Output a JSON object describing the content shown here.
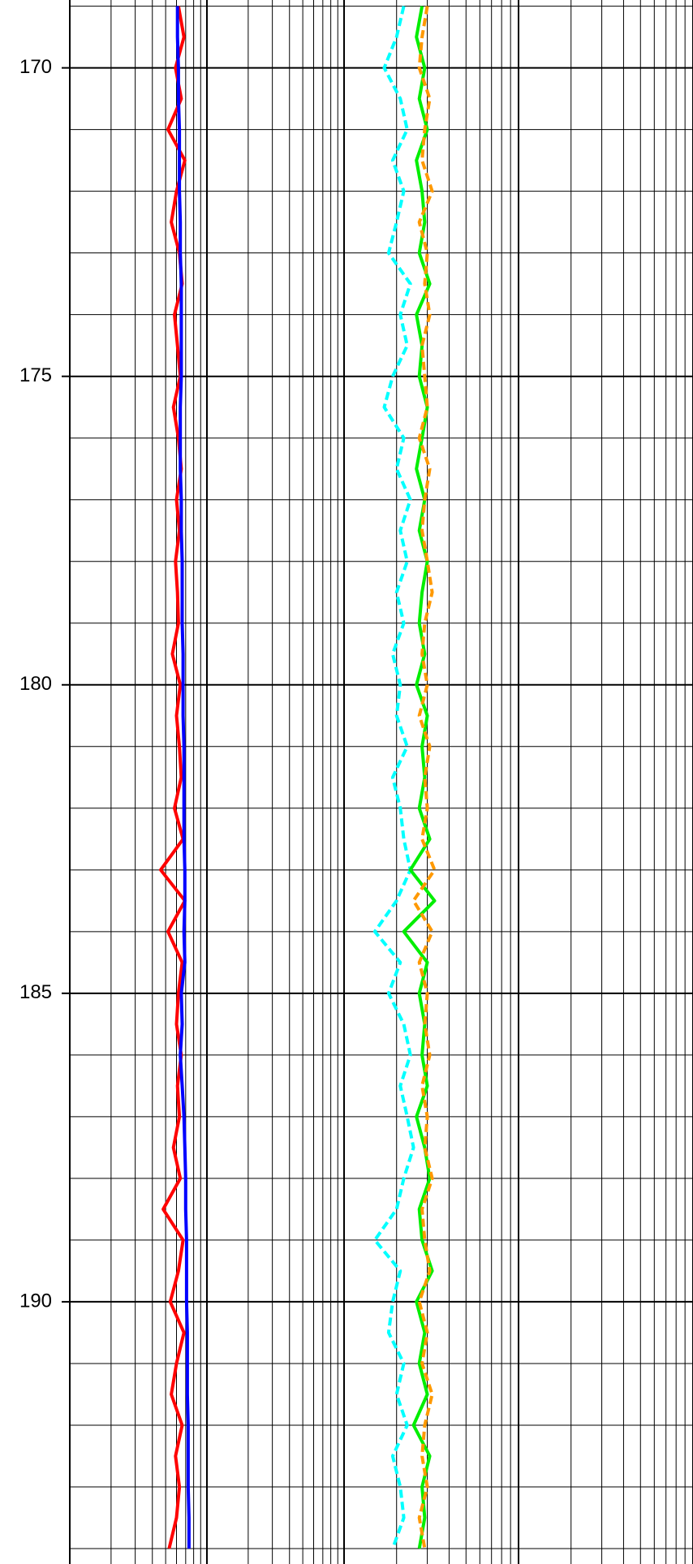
{
  "chart_data": {
    "type": "well-log",
    "ylim": [
      168.9,
      194.25
    ],
    "yticks": [
      170,
      175,
      180,
      185,
      190
    ],
    "yminor": [
      169,
      171,
      172,
      173,
      174,
      176,
      177,
      178,
      179,
      181,
      182,
      183,
      184,
      186,
      187,
      188,
      189,
      191,
      192,
      193,
      194
    ],
    "depth": [
      169,
      169.5,
      170,
      170.5,
      171,
      171.5,
      172,
      172.5,
      173,
      173.5,
      174,
      174.5,
      175,
      175.5,
      176,
      176.5,
      177,
      177.5,
      178,
      178.5,
      179,
      179.5,
      180,
      180.5,
      181,
      181.5,
      182,
      182.5,
      183,
      183.5,
      184,
      184.5,
      185,
      185.5,
      186,
      186.5,
      187,
      187.5,
      188,
      188.5,
      189,
      189.5,
      190,
      190.5,
      191,
      191.5,
      192,
      192.5,
      193,
      193.5,
      194
    ],
    "tracks": [
      {
        "xlim": [
          1,
          100
        ],
        "log": true,
        "xticks": [
          1,
          2,
          3,
          4,
          5,
          6,
          7,
          8,
          9,
          10,
          20,
          30,
          40,
          50,
          60,
          70,
          80,
          90,
          100
        ],
        "series": [
          {
            "color": "#ff0000",
            "dash": false,
            "values": [
              6.2,
              6.8,
              5.9,
              6.5,
              5.2,
              6.9,
              6.0,
              5.5,
              6.3,
              6.6,
              5.8,
              6.1,
              6.4,
              5.7,
              6.2,
              6.5,
              6.0,
              6.3,
              5.9,
              6.1,
              6.2,
              5.6,
              6.4,
              6.0,
              6.3,
              6.5,
              5.8,
              6.7,
              4.6,
              6.9,
              5.2,
              6.6,
              6.2,
              6.0,
              6.5,
              6.1,
              6.3,
              5.7,
              6.4,
              4.8,
              6.7,
              6.2,
              5.4,
              6.8,
              6.0,
              5.5,
              6.6,
              5.9,
              6.3,
              6.0,
              5.3
            ]
          },
          {
            "color": "#0000ff",
            "dash": false,
            "values": [
              6.1,
              6.1,
              6.2,
              6.2,
              6.3,
              6.3,
              6.3,
              6.4,
              6.4,
              6.5,
              6.5,
              6.5,
              6.5,
              6.4,
              6.4,
              6.4,
              6.5,
              6.5,
              6.6,
              6.6,
              6.6,
              6.7,
              6.7,
              6.7,
              6.8,
              6.8,
              6.8,
              6.8,
              6.9,
              6.9,
              6.8,
              6.9,
              6.5,
              6.6,
              6.4,
              6.6,
              6.8,
              6.9,
              7.0,
              7.0,
              7.1,
              7.1,
              7.1,
              7.2,
              7.2,
              7.2,
              7.3,
              7.3,
              7.3,
              7.4,
              7.4
            ]
          }
        ]
      },
      {
        "xlim": [
          1,
          100
        ],
        "log": true,
        "xticks": [
          1,
          2,
          3,
          4,
          5,
          6,
          7,
          8,
          9,
          10,
          20,
          30,
          40,
          50,
          60,
          70,
          80,
          90,
          100
        ],
        "series": [
          {
            "color": "#00ffff",
            "dash": true,
            "values": [
              2.2,
              2.0,
              1.7,
              2.1,
              2.3,
              1.9,
              2.2,
              2.0,
              1.8,
              2.4,
              2.1,
              2.3,
              1.9,
              1.7,
              2.2,
              2.0,
              2.4,
              2.1,
              2.3,
              2.0,
              2.2,
              1.9,
              2.1,
              2.0,
              2.3,
              1.9,
              2.1,
              2.2,
              2.4,
              2.0,
              1.5,
              2.1,
              1.8,
              2.2,
              2.4,
              2.1,
              2.3,
              2.5,
              2.2,
              2.0,
              1.5,
              2.1,
              1.9,
              1.8,
              2.2,
              2.0,
              2.3,
              1.9,
              2.1,
              2.2,
              1.9
            ]
          },
          {
            "color": "#00ee00",
            "dash": false,
            "values": [
              2.8,
              2.6,
              2.9,
              2.7,
              3.0,
              2.6,
              2.8,
              2.9,
              2.7,
              3.1,
              2.6,
              2.8,
              2.7,
              3.0,
              2.8,
              2.6,
              2.9,
              2.7,
              3.0,
              2.8,
              2.7,
              2.9,
              2.6,
              3.0,
              2.8,
              2.9,
              2.7,
              3.1,
              2.4,
              3.3,
              2.2,
              3.0,
              2.7,
              2.9,
              2.8,
              3.0,
              2.6,
              2.9,
              3.1,
              2.7,
              2.8,
              3.2,
              2.6,
              2.9,
              2.7,
              3.0,
              2.5,
              3.1,
              2.8,
              2.9,
              2.7
            ]
          },
          {
            "color": "#ff9900",
            "dash": true,
            "values": [
              3.0,
              2.8,
              2.7,
              3.1,
              2.9,
              2.8,
              3.2,
              2.7,
              3.0,
              2.9,
              3.1,
              2.8,
              2.9,
              3.0,
              2.7,
              3.1,
              2.9,
              2.8,
              3.0,
              3.2,
              2.9,
              2.8,
              3.0,
              2.7,
              3.1,
              2.9,
              3.0,
              2.8,
              3.3,
              2.5,
              3.2,
              2.7,
              3.0,
              2.9,
              3.1,
              2.8,
              3.0,
              2.9,
              3.2,
              2.8,
              2.9,
              3.1,
              2.7,
              3.0,
              2.8,
              3.2,
              2.9,
              2.8,
              3.0,
              2.7,
              2.9
            ]
          }
        ]
      }
    ]
  }
}
